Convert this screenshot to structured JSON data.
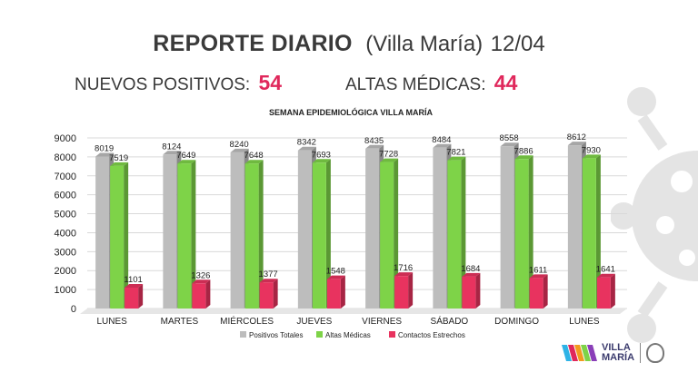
{
  "header": {
    "title_bold": "REPORTE DIARIO",
    "title_place": "(Villa María)",
    "title_date": "12/04"
  },
  "stats": {
    "new_positive_label": "NUEVOS POSITIVOS:",
    "new_positive_value": "54",
    "discharges_label": "ALTAS  MÉDICAS:",
    "discharges_value": "44"
  },
  "logo": {
    "line1": "VILLA",
    "line2": "MARÍA"
  },
  "colors": {
    "accent": "#e0285c",
    "gray_bar": "#bdbdbd",
    "green_bar": "#7ed348",
    "red_bar": "#e8335f",
    "virus": "#e4e4e4"
  },
  "chart_data": {
    "type": "bar",
    "title": "SEMANA EPIDEMIOLÓGICA VILLA MARÍA",
    "categories": [
      "LUNES",
      "MARTES",
      "MIÉRCOLES",
      "JUEVES",
      "VIERNES",
      "SÁBADO",
      "DOMINGO",
      "LUNES"
    ],
    "series": [
      {
        "name": "Positivos Totales",
        "color": "#bdbdbd",
        "values": [
          8019,
          8124,
          8240,
          8342,
          8435,
          8484,
          8558,
          8612
        ]
      },
      {
        "name": "Altas Médicas",
        "color": "#7ed348",
        "values": [
          7519,
          7649,
          7648,
          7693,
          7728,
          7821,
          7886,
          7930
        ]
      },
      {
        "name": "Contactos Estrechos",
        "color": "#e8335f",
        "values": [
          1101,
          1326,
          1377,
          1548,
          1716,
          1684,
          1611,
          1641
        ]
      }
    ],
    "ylim": [
      0,
      9000
    ],
    "yticks": [
      "0",
      "1000",
      "2000",
      "3000",
      "4000",
      "5000",
      "6000",
      "7000",
      "8000",
      "9000"
    ],
    "xlabel": "",
    "ylabel": "",
    "grid": true,
    "legend_position": "bottom"
  }
}
